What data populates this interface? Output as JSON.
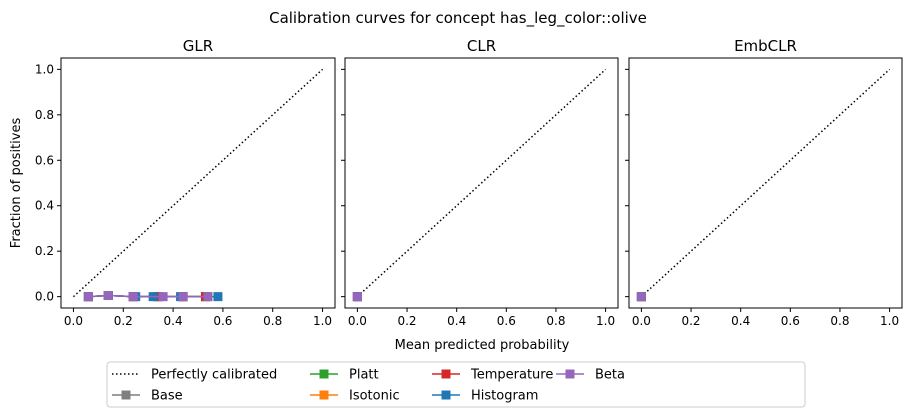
{
  "title": "Calibration curves for concept has_leg_color::olive",
  "xlabel": "Mean predicted probability",
  "ylabel": "Fraction of positives",
  "x_ticks": [
    "0.0",
    "0.2",
    "0.4",
    "0.6",
    "0.8",
    "1.0"
  ],
  "y_ticks": [
    "0.0",
    "0.2",
    "0.4",
    "0.6",
    "0.8",
    "1.0"
  ],
  "legend": {
    "placement": "bottom-center",
    "entries": [
      {
        "label": "Perfectly calibrated",
        "color": "#000000",
        "style": "dotted"
      },
      {
        "label": "Base",
        "color": "#7f7f7f",
        "style": "square"
      },
      {
        "label": "Platt",
        "color": "#2ca02c",
        "style": "square"
      },
      {
        "label": "Isotonic",
        "color": "#ff7f0e",
        "style": "square"
      },
      {
        "label": "Temperature",
        "color": "#d62728",
        "style": "square"
      },
      {
        "label": "Histogram",
        "color": "#1f77b4",
        "style": "square"
      },
      {
        "label": "Beta",
        "color": "#9467bd",
        "style": "square"
      }
    ]
  },
  "chart_data": [
    {
      "type": "line",
      "title": "GLR",
      "xlim": [
        -0.05,
        1.05
      ],
      "ylim": [
        -0.05,
        1.05
      ],
      "grid": false,
      "series": [
        {
          "name": "Perfectly calibrated",
          "color": "#000000",
          "dash": true,
          "x": [
            0,
            1
          ],
          "y": [
            0,
            1
          ]
        },
        {
          "name": "Base",
          "color": "#7f7f7f",
          "x": [
            0.06,
            0.14,
            0.24,
            0.34,
            0.44,
            0.53
          ],
          "y": [
            0,
            0.005,
            0,
            0,
            0,
            0
          ]
        },
        {
          "name": "Platt",
          "color": "#2ca02c",
          "x": [
            0.06,
            0.14,
            0.24,
            0.34,
            0.44,
            0.53
          ],
          "y": [
            0,
            0.005,
            0,
            0,
            0,
            0
          ]
        },
        {
          "name": "Isotonic",
          "color": "#ff7f0e",
          "x": [
            0.06,
            0.14,
            0.24,
            0.34,
            0.44,
            0.54
          ],
          "y": [
            0,
            0.005,
            0,
            0,
            0,
            0
          ]
        },
        {
          "name": "Temperature",
          "color": "#d62728",
          "x": [
            0.06,
            0.14,
            0.24,
            0.34,
            0.44,
            0.53
          ],
          "y": [
            0,
            0.005,
            0,
            0,
            0,
            0
          ]
        },
        {
          "name": "Histogram",
          "color": "#1f77b4",
          "x": [
            0.06,
            0.14,
            0.25,
            0.32,
            0.43,
            0.58
          ],
          "y": [
            0,
            0.005,
            0,
            0,
            0,
            0
          ]
        },
        {
          "name": "Beta",
          "color": "#9467bd",
          "x": [
            0.06,
            0.14,
            0.24,
            0.36,
            0.44,
            0.54
          ],
          "y": [
            0,
            0.005,
            0,
            0,
            0,
            0
          ]
        }
      ]
    },
    {
      "type": "line",
      "title": "CLR",
      "xlim": [
        -0.05,
        1.05
      ],
      "ylim": [
        -0.05,
        1.05
      ],
      "grid": false,
      "series": [
        {
          "name": "Perfectly calibrated",
          "color": "#000000",
          "dash": true,
          "x": [
            0,
            1
          ],
          "y": [
            0,
            1
          ]
        },
        {
          "name": "Base",
          "color": "#7f7f7f",
          "x": [
            0.0
          ],
          "y": [
            0.0
          ]
        },
        {
          "name": "Platt",
          "color": "#2ca02c",
          "x": [
            0.0
          ],
          "y": [
            0.0
          ]
        },
        {
          "name": "Isotonic",
          "color": "#ff7f0e",
          "x": [
            0.0
          ],
          "y": [
            0.0
          ]
        },
        {
          "name": "Temperature",
          "color": "#d62728",
          "x": [
            0.0
          ],
          "y": [
            0.0
          ]
        },
        {
          "name": "Histogram",
          "color": "#1f77b4",
          "x": [
            0.0
          ],
          "y": [
            0.0
          ]
        },
        {
          "name": "Beta",
          "color": "#9467bd",
          "x": [
            0.0
          ],
          "y": [
            0.0
          ]
        }
      ]
    },
    {
      "type": "line",
      "title": "EmbCLR",
      "xlim": [
        -0.05,
        1.05
      ],
      "ylim": [
        -0.05,
        1.05
      ],
      "grid": false,
      "series": [
        {
          "name": "Perfectly calibrated",
          "color": "#000000",
          "dash": true,
          "x": [
            0,
            1
          ],
          "y": [
            0,
            1
          ]
        },
        {
          "name": "Base",
          "color": "#7f7f7f",
          "x": [
            0.0
          ],
          "y": [
            0.0
          ]
        },
        {
          "name": "Platt",
          "color": "#2ca02c",
          "x": [
            0.0
          ],
          "y": [
            0.0
          ]
        },
        {
          "name": "Isotonic",
          "color": "#ff7f0e",
          "x": [
            0.0
          ],
          "y": [
            0.0
          ]
        },
        {
          "name": "Temperature",
          "color": "#d62728",
          "x": [
            0.0
          ],
          "y": [
            0.0
          ]
        },
        {
          "name": "Histogram",
          "color": "#1f77b4",
          "x": [
            0.0
          ],
          "y": [
            0.0
          ]
        },
        {
          "name": "Beta",
          "color": "#9467bd",
          "x": [
            0.0
          ],
          "y": [
            0.0
          ]
        }
      ]
    }
  ]
}
